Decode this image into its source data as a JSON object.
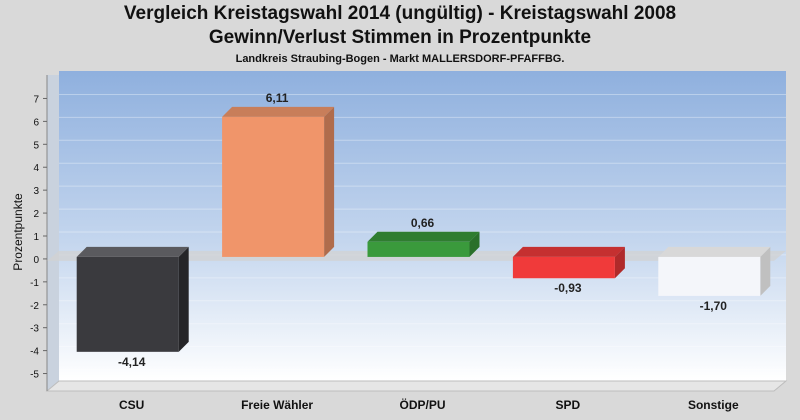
{
  "chart_data": {
    "type": "bar",
    "title": "Vergleich Kreistagswahl 2014 (ungültig) - Kreistagswahl 2008",
    "subtitle": "Gewinn/Verlust Stimmen in Prozentpunkte",
    "subtitle2": "Landkreis Straubing-Bogen - Markt MALLERSDORF-PFAFFBG.",
    "ylabel": "Prozentpunkte",
    "xlabel": "",
    "ylim": [
      -5.5,
      7.5
    ],
    "yticks": [
      7,
      6,
      5,
      4,
      3,
      2,
      1,
      0,
      -1,
      -2,
      -3,
      -4,
      -5
    ],
    "ytick_labels": [
      "7",
      "6",
      "5",
      "4",
      "3",
      "2",
      "1",
      "0",
      "-1",
      "-2",
      "-3",
      "-4",
      "-5"
    ],
    "grid": true,
    "legend": "none",
    "categories": [
      "CSU",
      "Freie Wähler",
      "ÖDP/PU",
      "SPD",
      "Sonstige"
    ],
    "values": [
      -4.14,
      6.11,
      0.66,
      -0.93,
      -1.7
    ],
    "value_labels": [
      "-4,14",
      "6,11",
      "0,66",
      "-0,93",
      "-1,70"
    ],
    "colors": [
      "#3a3a3e",
      "#f0956a",
      "#3a9a3c",
      "#f03a3a",
      "#f4f6fa"
    ],
    "side_colors": [
      "#252528",
      "#b06c4c",
      "#2a702b",
      "#b02a2a",
      "#c0c0c0"
    ],
    "top_colors": [
      "#5a5a5e",
      "#c87e5a",
      "#2f7d30",
      "#c53030",
      "#d8d8d8"
    ]
  }
}
